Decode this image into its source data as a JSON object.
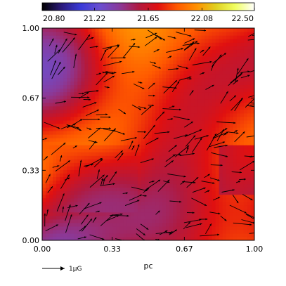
{
  "chart_data": {
    "type": "heatmap",
    "title": "",
    "colorbar": {
      "ticks": [
        20.8,
        21.22,
        21.65,
        22.08,
        22.5
      ],
      "tick_labels": [
        "20.80",
        "21.22",
        "21.65",
        "22.08",
        "22.50"
      ],
      "range": [
        20.8,
        22.5
      ],
      "colors": [
        "#000000",
        "#2b1a7a",
        "#3a3ad8",
        "#6a4fd0",
        "#8a3a9a",
        "#b01a40",
        "#e01010",
        "#ff5a00",
        "#ff9000",
        "#e0d020",
        "#f0ff60",
        "#ffffff"
      ]
    },
    "xlabel": "pc",
    "ylabel": "",
    "x_ticks": [
      0.0,
      0.33,
      0.67,
      1.0
    ],
    "x_tick_labels": [
      "0.00",
      "0.33",
      "0.67",
      "1.00"
    ],
    "y_ticks": [
      0.0,
      0.33,
      0.67,
      1.0
    ],
    "y_tick_labels": [
      "0.00",
      "0.33",
      "0.67",
      "1.00"
    ],
    "xlim": [
      0,
      1
    ],
    "ylim": [
      0,
      1
    ],
    "vector_field": "magnetic field vectors overlaid",
    "scale_arrow": {
      "label": "1μG",
      "magnitude": 1
    }
  }
}
